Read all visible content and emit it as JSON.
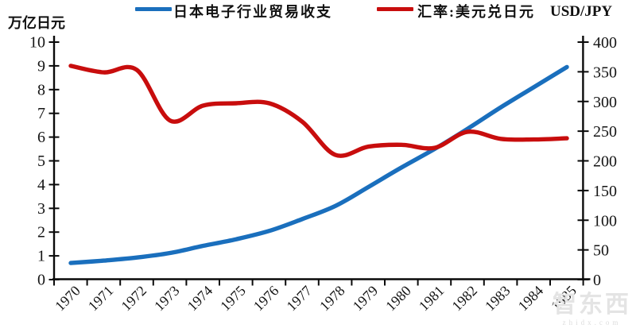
{
  "page": {
    "background": "#ffffff"
  },
  "legend": {
    "series1_label": "日本电子行业贸易收支",
    "series2_label": "汇率:美元兑日元"
  },
  "axis_titles": {
    "left": "万亿日元",
    "right": "USD/JPY"
  },
  "watermark": {
    "text": "智东西",
    "subtext": "zhidx.com"
  },
  "colors": {
    "series1_blue": "#1a6fbd",
    "series2_red": "#c80d0d",
    "axis_black": "#0a0a0a",
    "tick_label": "#141414",
    "watermark_gray": "#e4e4e4"
  },
  "chart_data": {
    "type": "line",
    "title": "",
    "x": [
      1970,
      1971,
      1972,
      1973,
      1974,
      1975,
      1976,
      1977,
      1978,
      1979,
      1980,
      1981,
      1982,
      1983,
      1984,
      1985
    ],
    "x_tick_labels": [
      "1970",
      "1971",
      "1972",
      "1973",
      "1974",
      "1975",
      "1976",
      "1977",
      "1978",
      "1979",
      "1980",
      "1981",
      "1982",
      "1983",
      "1984",
      "1985"
    ],
    "series": [
      {
        "name": "日本电子行业贸易收支",
        "axis": "left",
        "color": "#1a6fbd",
        "unit": "万亿日元",
        "values": [
          0.7,
          0.8,
          0.93,
          1.12,
          1.42,
          1.7,
          2.05,
          2.55,
          3.1,
          3.9,
          4.72,
          5.5,
          6.35,
          7.25,
          8.1,
          8.95
        ]
      },
      {
        "name": "汇率:美元兑日元",
        "axis": "right",
        "color": "#c80d0d",
        "unit": "USD/JPY",
        "values": [
          360,
          349,
          353,
          268,
          293,
          297,
          297,
          266,
          210,
          224,
          227,
          222,
          249,
          237,
          236,
          238
        ]
      }
    ],
    "left_axis": {
      "title": "万亿日元",
      "min": 0,
      "max": 10,
      "step": 1,
      "tick_labels": [
        "0",
        "1",
        "2",
        "3",
        "4",
        "5",
        "6",
        "7",
        "8",
        "9",
        "10"
      ]
    },
    "right_axis": {
      "title": "USD/JPY",
      "min": 0,
      "max": 400,
      "step": 50,
      "tick_labels": [
        "0",
        "50",
        "100",
        "150",
        "200",
        "250",
        "300",
        "350",
        "400"
      ]
    },
    "grid": false,
    "smoothed_lines": true,
    "legend_position": "top"
  }
}
